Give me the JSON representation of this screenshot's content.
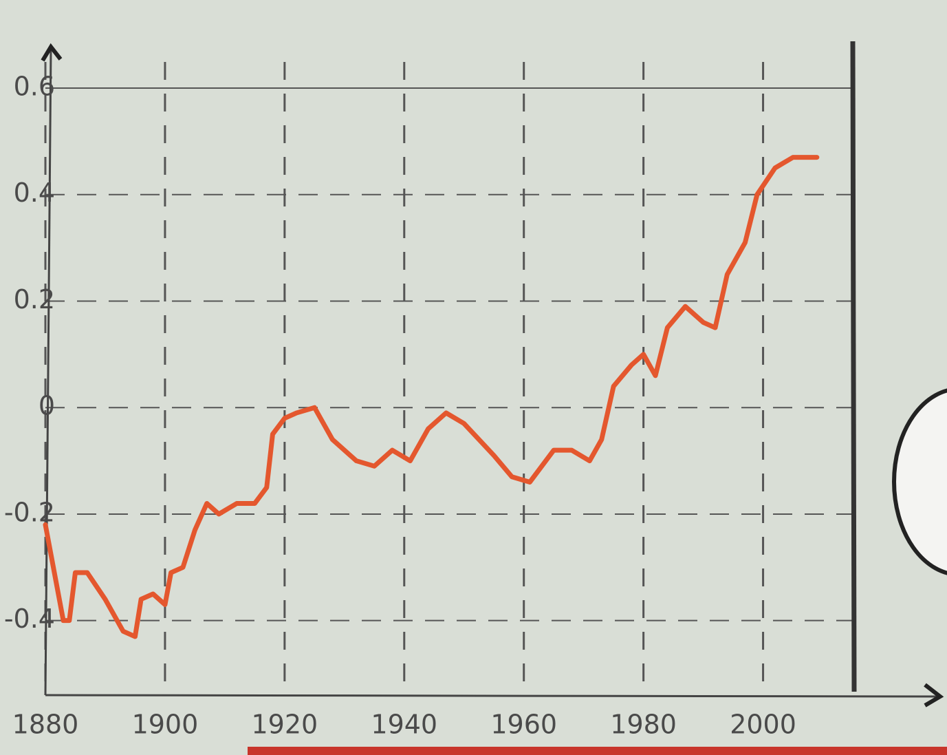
{
  "chart_data": {
    "type": "line",
    "x": [
      1880,
      1883,
      1884,
      1885,
      1887,
      1890,
      1893,
      1895,
      1896,
      1898,
      1900,
      1901,
      1903,
      1905,
      1907,
      1909,
      1912,
      1915,
      1917,
      1918,
      1920,
      1922,
      1925,
      1928,
      1932,
      1935,
      1938,
      1941,
      1944,
      1947,
      1950,
      1955,
      1958,
      1961,
      1965,
      1968,
      1971,
      1973,
      1975,
      1978,
      1980,
      1982,
      1984,
      1987,
      1990,
      1992,
      1994,
      1997,
      1999,
      2002,
      2005,
      2009
    ],
    "series": [
      {
        "color": "#e4572e",
        "values": [
          -0.22,
          -0.4,
          -0.4,
          -0.31,
          -0.31,
          -0.36,
          -0.42,
          -0.43,
          -0.36,
          -0.35,
          -0.37,
          -0.31,
          -0.3,
          -0.23,
          -0.18,
          -0.2,
          -0.18,
          -0.18,
          -0.15,
          -0.05,
          -0.02,
          -0.01,
          0.0,
          -0.06,
          -0.1,
          -0.11,
          -0.08,
          -0.1,
          -0.04,
          -0.01,
          -0.03,
          -0.09,
          -0.13,
          -0.14,
          -0.08,
          -0.08,
          -0.1,
          -0.06,
          0.04,
          0.08,
          0.1,
          0.06,
          0.15,
          0.19,
          0.16,
          0.15,
          0.25,
          0.31,
          0.4,
          0.45,
          0.47,
          0.47
        ]
      }
    ],
    "xlim": [
      1880,
      2015
    ],
    "xticks": [
      1880,
      1900,
      1920,
      1940,
      1960,
      1980,
      2000
    ],
    "ylim": [
      -0.54,
      0.6
    ],
    "yticks": [
      -0.4,
      -0.2,
      0,
      0.2,
      0.4,
      0.6
    ],
    "grid": true
  }
}
